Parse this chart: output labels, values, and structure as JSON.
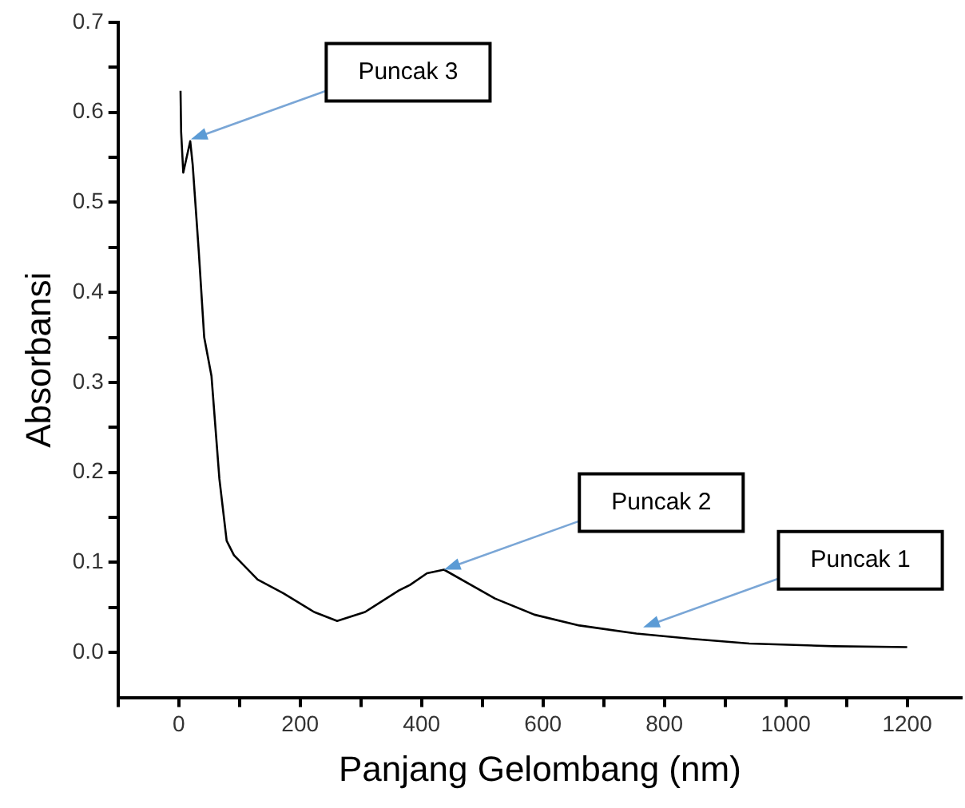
{
  "chart_data": {
    "type": "line",
    "xlabel": "Panjang Gelombang (nm)",
    "ylabel": "Absorbansi",
    "series": [
      {
        "color": "#000000",
        "x": [
          3,
          4,
          7.5,
          19,
          23,
          33,
          42,
          54,
          67,
          79,
          91,
          130,
          172,
          223,
          261,
          307,
          363,
          381,
          409,
          437,
          521,
          586,
          660,
          754,
          847,
          940,
          1079,
          1200
        ],
        "values": [
          0.624,
          0.578,
          0.533,
          0.568,
          0.542,
          0.446,
          0.35,
          0.307,
          0.193,
          0.124,
          0.108,
          0.081,
          0.066,
          0.045,
          0.035,
          0.045,
          0.069,
          0.075,
          0.088,
          0.092,
          0.06,
          0.042,
          0.03,
          0.021,
          0.015,
          0.01,
          0.007,
          0.006
        ]
      }
    ],
    "xlim": [
      -100,
      1290
    ],
    "ylim": [
      -0.05,
      0.7
    ],
    "xticks": [
      {
        "value": -100,
        "label": null
      },
      0,
      {
        "value": 100,
        "label": null
      },
      200,
      {
        "value": 300,
        "label": null
      },
      400,
      {
        "value": 500,
        "label": null
      },
      600,
      {
        "value": 700,
        "label": null
      },
      800,
      {
        "value": 900,
        "label": null
      },
      1000,
      {
        "value": 1100,
        "label": null
      },
      1200
    ],
    "yticks": [
      {
        "value": 0,
        "label": "0.0"
      },
      {
        "value": 0.05,
        "label": null
      },
      0.1,
      {
        "value": 0.15,
        "label": null
      },
      0.2,
      {
        "value": 0.25,
        "label": null
      },
      0.3,
      {
        "value": 0.35,
        "label": null
      },
      0.4,
      {
        "value": 0.45,
        "label": null
      },
      0.5,
      {
        "value": 0.55,
        "label": null
      },
      0.6,
      {
        "value": 0.65,
        "label": null
      },
      0.7
    ],
    "annotations": [
      {
        "text": "Puncak 3",
        "x": 20,
        "y": 0.57
      },
      {
        "text": "Puncak 2",
        "x": 437,
        "y": 0.092
      },
      {
        "text": "Puncak 1",
        "x": 765,
        "y": 0.028
      }
    ],
    "grid": false,
    "legend": false,
    "marker": "none",
    "line_style": "solid"
  }
}
